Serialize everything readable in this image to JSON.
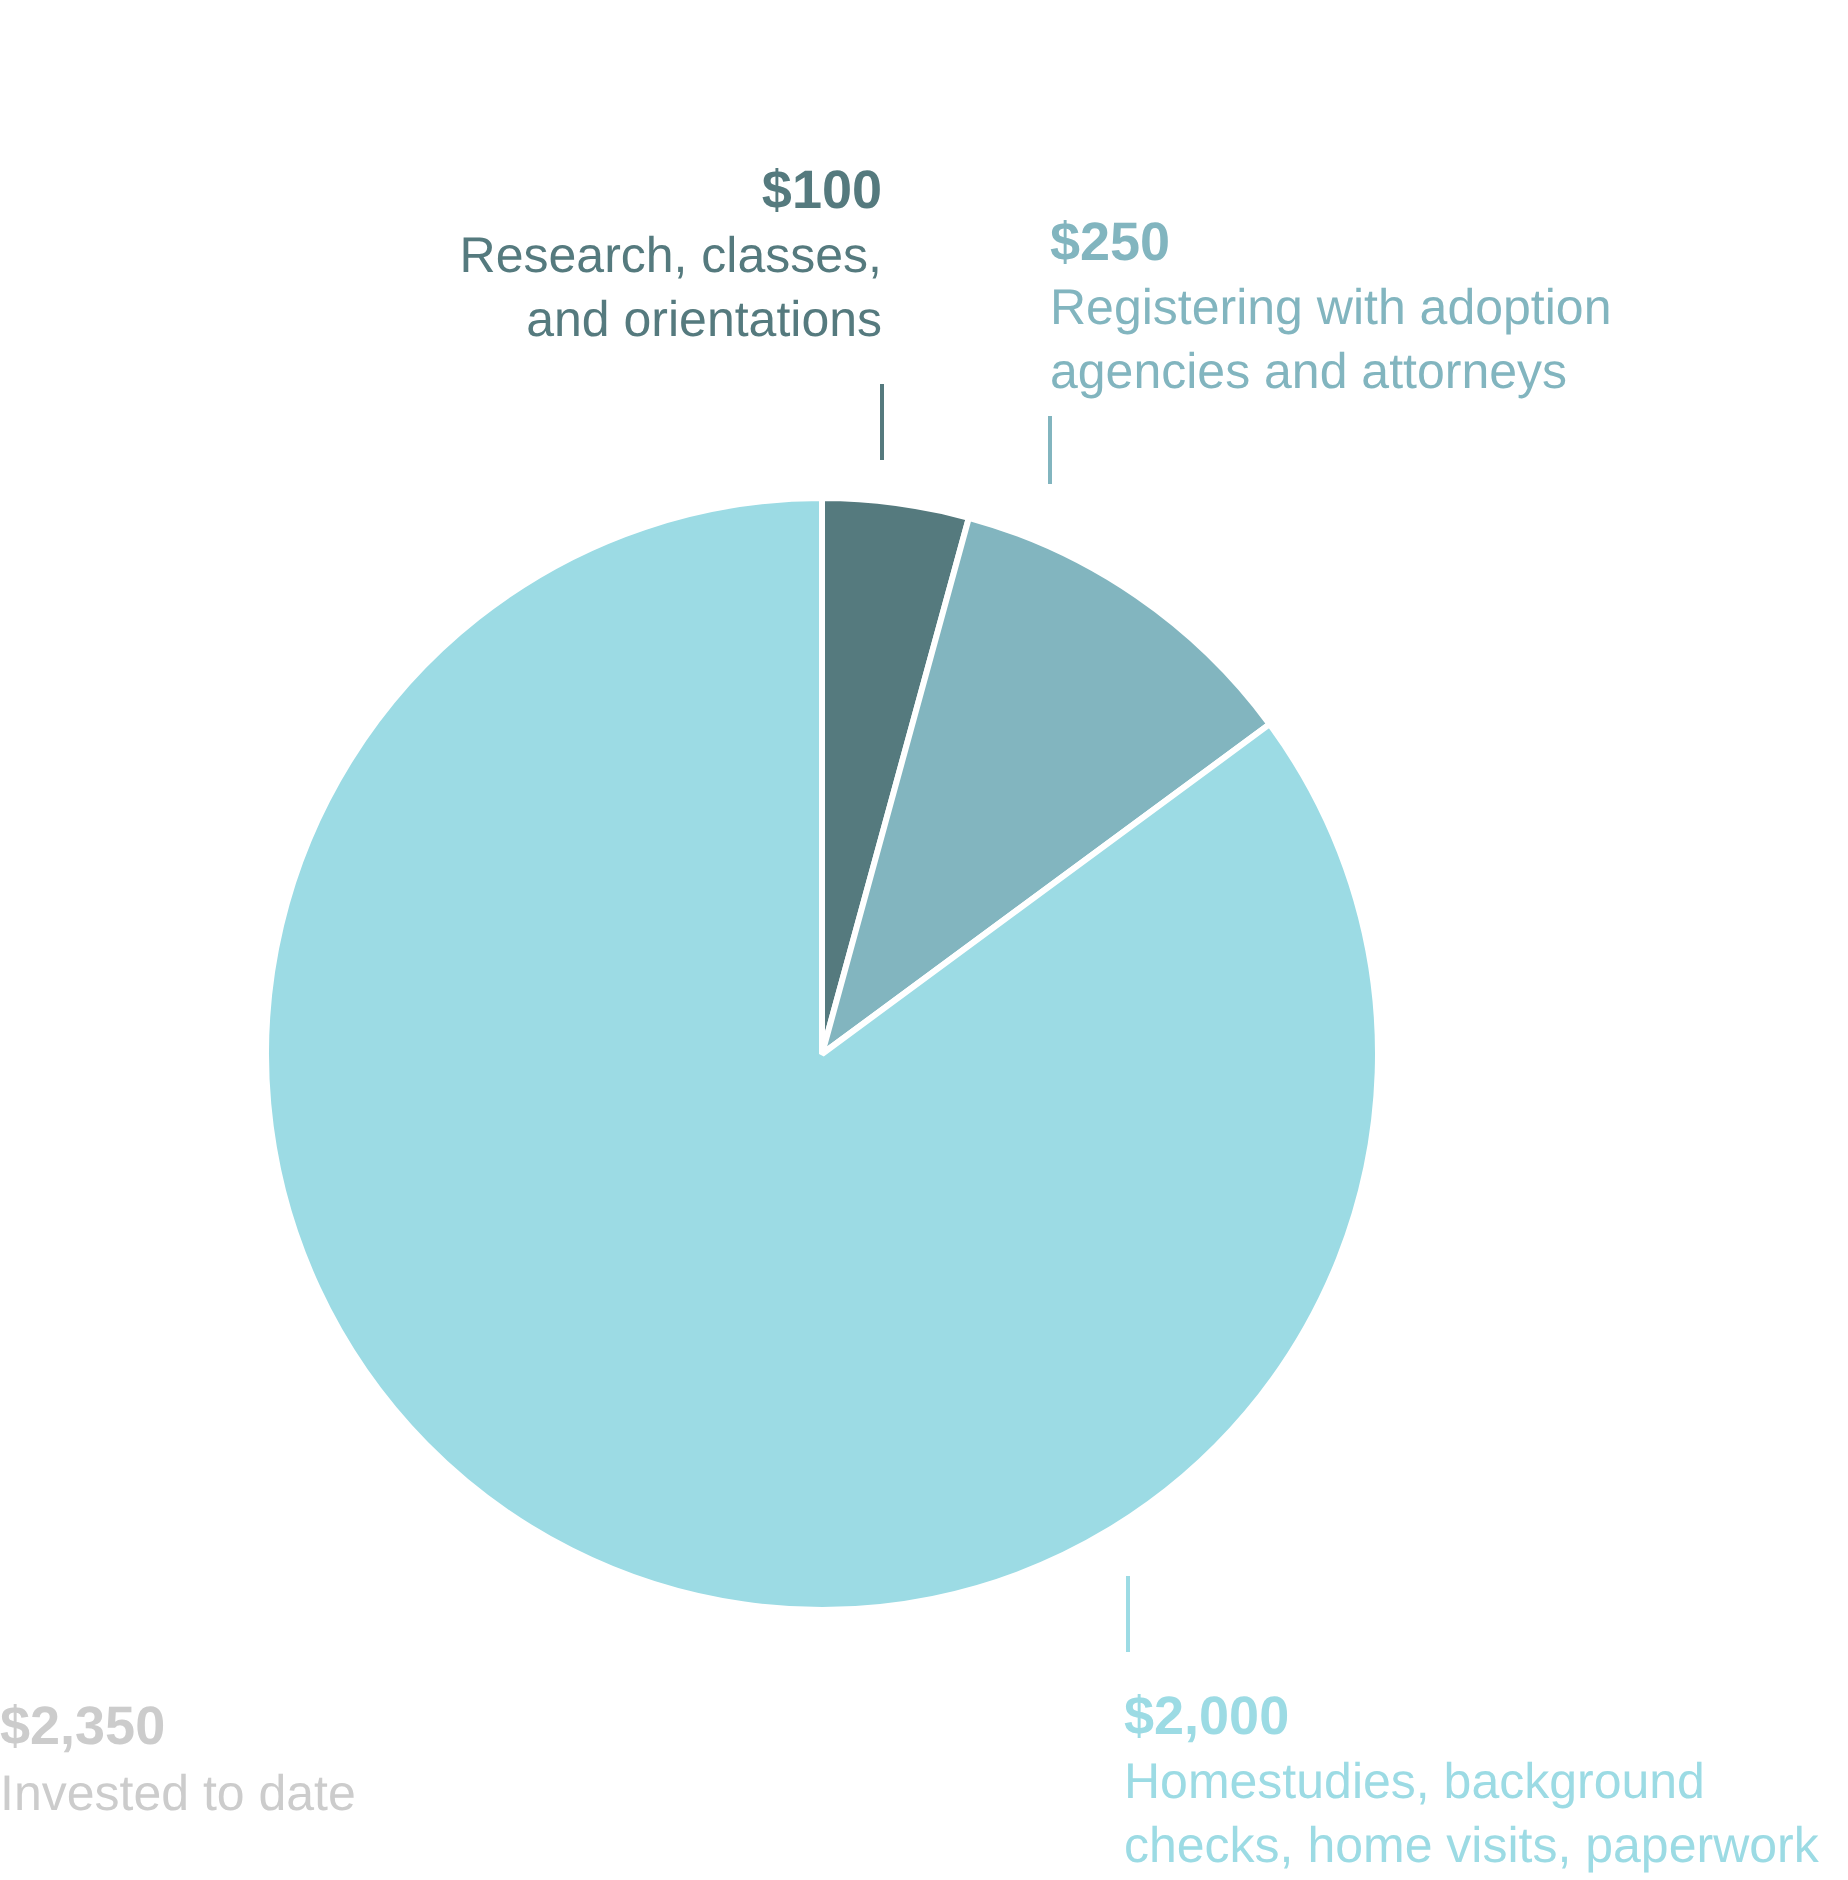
{
  "chart_data": {
    "type": "pie",
    "categories": [
      "Research, classes, and orientations",
      "Registering with adoption agencies and attorneys",
      "Homestudies, background checks, home visits, paperwork"
    ],
    "values": [
      100,
      250,
      2000
    ],
    "colors": [
      "#557a7e",
      "#82b5bf",
      "#9cdbe4"
    ],
    "value_labels": [
      "$100",
      "$250",
      "$2,000"
    ],
    "annotations": [
      "$2,350",
      "Invested to date"
    ]
  }
}
